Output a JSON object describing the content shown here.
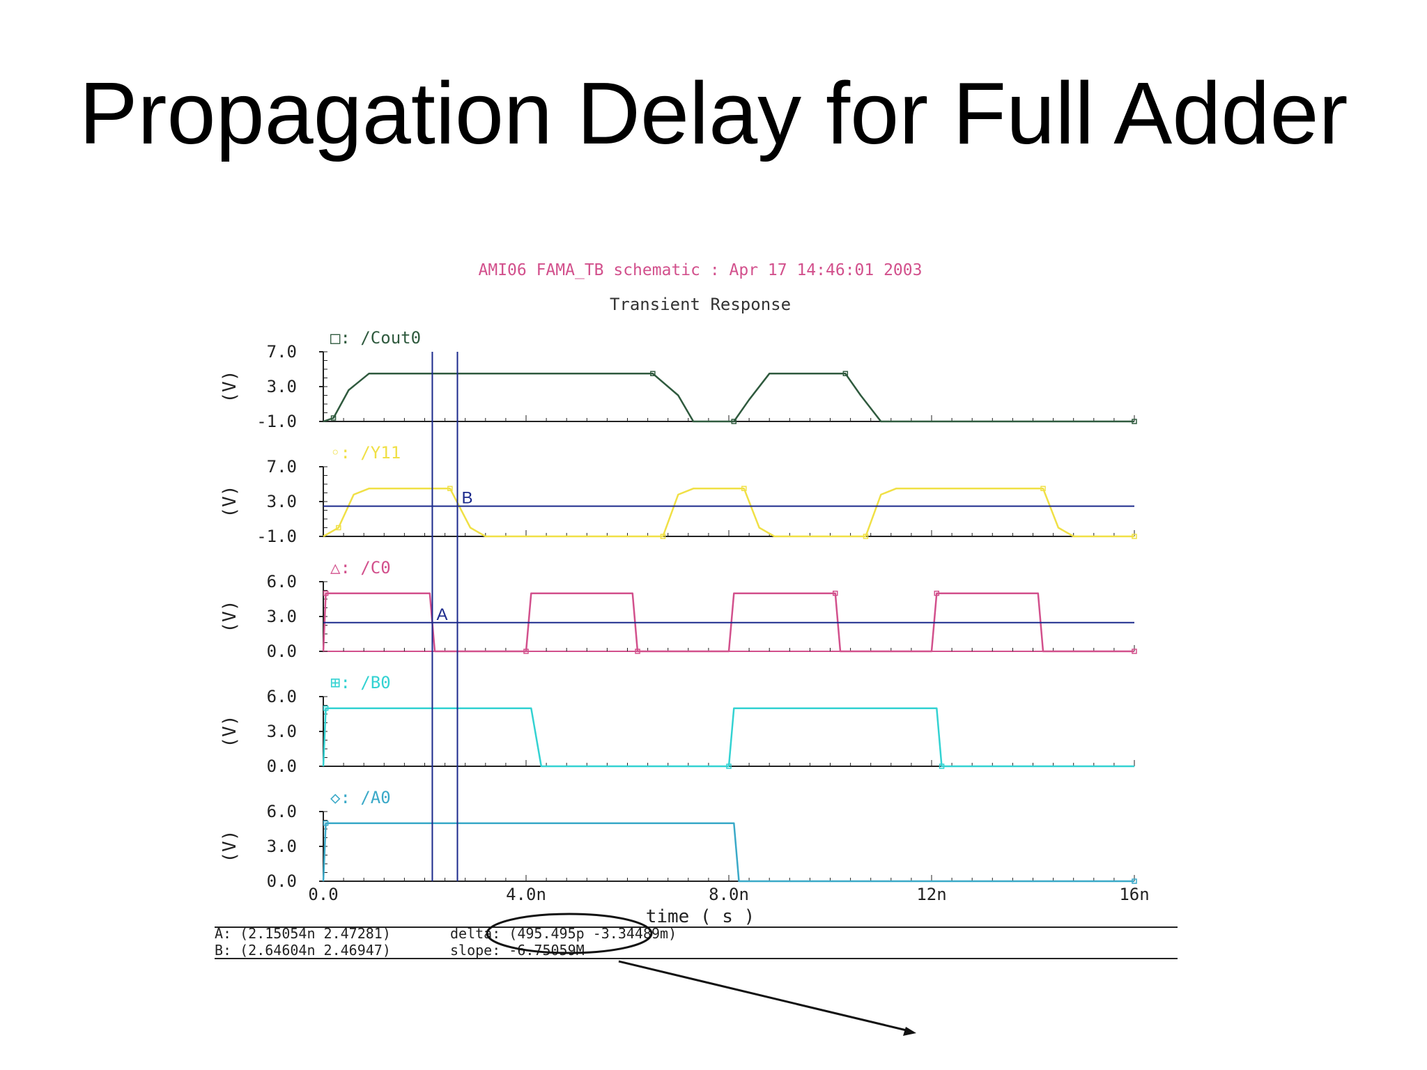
{
  "slide": {
    "title": "Propagation Delay for Full Adder"
  },
  "waveform": {
    "header": "AMI06 FAMA_TB schematic : Apr 17 14:46:01 2003",
    "subtitle": "Transient Response",
    "xlabel": "time ( s )",
    "ylabel": "(V)",
    "x_ticks": [
      "0.0",
      "4.0n",
      "8.0n",
      "12n",
      "16n"
    ],
    "cursor_line_A": "A",
    "cursor_line_B": "B",
    "readouts": {
      "A": "A: (2.15054n 2.47281)",
      "B": "B: (2.64604n 2.46947)",
      "delta": "delta: (495.495p -3.34489m)",
      "slope": "slope: -6.75059M"
    }
  },
  "colors": {
    "cout": "#2f5a3e",
    "y11": "#f0e046",
    "c0": "#d2508c",
    "b0": "#33d2d2",
    "a0": "#3aa9c8",
    "cursor": "#1c2a8c",
    "header": "#d2508c",
    "axis": "#222222"
  },
  "chart_data": {
    "type": "line",
    "title": "Transient Response",
    "xlabel": "time ( s )",
    "x_unit": "ns",
    "xlim": [
      0,
      16
    ],
    "grid": false,
    "cursors": [
      {
        "name": "A",
        "x": 2.15054,
        "y": 2.47281
      },
      {
        "name": "B",
        "x": 2.64604,
        "y": 2.46947
      }
    ],
    "series": [
      {
        "name": "/Cout0",
        "marker": "□",
        "ylabel": "(V)",
        "yticks": [
          "7.0",
          "3.0",
          "-1.0"
        ],
        "ylim": [
          -1,
          7
        ],
        "points": [
          [
            0,
            -1.0
          ],
          [
            0.2,
            -0.6
          ],
          [
            0.5,
            2.6
          ],
          [
            0.9,
            4.5
          ],
          [
            6.5,
            4.5
          ],
          [
            7.0,
            2.0
          ],
          [
            7.3,
            -1.0
          ],
          [
            8.1,
            -1.0
          ],
          [
            8.4,
            1.5
          ],
          [
            8.8,
            4.5
          ],
          [
            10.3,
            4.5
          ],
          [
            10.6,
            2.0
          ],
          [
            11.0,
            -1.0
          ],
          [
            16,
            -1.0
          ]
        ]
      },
      {
        "name": "/Y11",
        "marker": "◦",
        "ylabel": "(V)",
        "yticks": [
          "7.0",
          "3.0",
          "-1.0"
        ],
        "ylim": [
          -1,
          7
        ],
        "points": [
          [
            0,
            -1.0
          ],
          [
            0.3,
            0.0
          ],
          [
            0.6,
            3.8
          ],
          [
            0.9,
            4.5
          ],
          [
            2.5,
            4.5
          ],
          [
            2.9,
            0.0
          ],
          [
            3.2,
            -1.0
          ],
          [
            6.7,
            -1.0
          ],
          [
            7.0,
            3.8
          ],
          [
            7.3,
            4.5
          ],
          [
            8.3,
            4.5
          ],
          [
            8.6,
            0.0
          ],
          [
            8.9,
            -1.0
          ],
          [
            10.7,
            -1.0
          ],
          [
            11.0,
            3.8
          ],
          [
            11.3,
            4.5
          ],
          [
            14.2,
            4.5
          ],
          [
            14.5,
            0.0
          ],
          [
            14.8,
            -1.0
          ],
          [
            16,
            -1.0
          ]
        ]
      },
      {
        "name": "/C0",
        "marker": "△",
        "ylabel": "(V)",
        "yticks": [
          "6.0",
          "3.0",
          "0.0"
        ],
        "ylim": [
          0,
          6
        ],
        "points": [
          [
            0,
            0
          ],
          [
            0.05,
            5.0
          ],
          [
            2.1,
            5.0
          ],
          [
            2.2,
            0
          ],
          [
            4.0,
            0
          ],
          [
            4.1,
            5.0
          ],
          [
            6.1,
            5.0
          ],
          [
            6.2,
            0
          ],
          [
            8.0,
            0
          ],
          [
            8.1,
            5.0
          ],
          [
            10.1,
            5.0
          ],
          [
            10.2,
            0
          ],
          [
            12.0,
            0
          ],
          [
            12.1,
            5.0
          ],
          [
            14.1,
            5.0
          ],
          [
            14.2,
            0
          ],
          [
            16,
            0
          ]
        ]
      },
      {
        "name": "/B0",
        "marker": "⊞",
        "ylabel": "(V)",
        "yticks": [
          "6.0",
          "3.0",
          "0.0"
        ],
        "ylim": [
          0,
          6
        ],
        "points": [
          [
            0,
            0
          ],
          [
            0.05,
            5.0
          ],
          [
            4.1,
            5.0
          ],
          [
            4.3,
            0
          ],
          [
            8.0,
            0
          ],
          [
            8.1,
            5.0
          ],
          [
            12.1,
            5.0
          ],
          [
            12.2,
            0
          ],
          [
            16,
            0
          ]
        ]
      },
      {
        "name": "/A0",
        "marker": "◇",
        "ylabel": "(V)",
        "yticks": [
          "6.0",
          "3.0",
          "0.0"
        ],
        "ylim": [
          0,
          6
        ],
        "points": [
          [
            0,
            0
          ],
          [
            0.05,
            5.0
          ],
          [
            8.1,
            5.0
          ],
          [
            8.2,
            0
          ],
          [
            16,
            0
          ]
        ]
      }
    ]
  }
}
